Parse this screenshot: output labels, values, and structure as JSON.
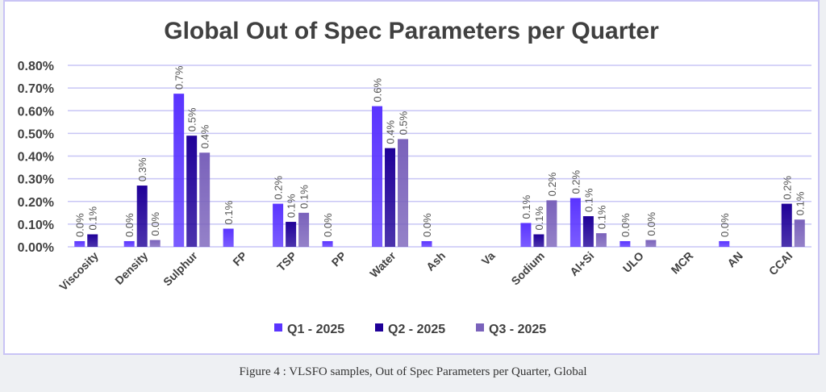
{
  "chart_data": {
    "type": "bar",
    "title": "Global Out of Spec Parameters per Quarter",
    "xlabel": "",
    "ylabel": "",
    "ylim": [
      0,
      0.8
    ],
    "yticks": [
      "0.00%",
      "0.10%",
      "0.20%",
      "0.30%",
      "0.40%",
      "0.50%",
      "0.60%",
      "0.70%",
      "0.80%"
    ],
    "grid": true,
    "legend": "bottom",
    "categories": [
      "Viscosity",
      "Density",
      "Sulphur",
      "FP",
      "TSP",
      "PP",
      "Water",
      "Ash",
      "Va",
      "Sodium",
      "Al+Si",
      "ULO",
      "MCR",
      "AN",
      "CCAI"
    ],
    "series": [
      {
        "name": "Q1 - 2025",
        "color": "#5a34ff",
        "values": [
          0.025,
          0.025,
          0.675,
          0.08,
          0.19,
          0.025,
          0.62,
          0.025,
          null,
          0.105,
          0.215,
          0.025,
          null,
          0.025,
          null
        ],
        "labels": [
          "0.0%",
          "0.0%",
          "0.7%",
          "0.1%",
          "0.2%",
          "0.0%",
          "0.6%",
          "0.0%",
          null,
          "0.1%",
          "0.2%",
          "0.0%",
          null,
          "0.0%",
          null
        ]
      },
      {
        "name": "Q2 - 2025",
        "color": "#1f0098",
        "values": [
          0.055,
          0.27,
          0.49,
          null,
          0.11,
          null,
          0.435,
          null,
          null,
          0.055,
          0.135,
          null,
          null,
          null,
          0.19
        ],
        "labels": [
          "0.1%",
          "0.3%",
          "0.5%",
          null,
          "0.1%",
          null,
          "0.4%",
          null,
          null,
          "0.1%",
          "0.1%",
          null,
          null,
          null,
          "0.2%"
        ]
      },
      {
        "name": "Q3 - 2025",
        "color": "#7a62bb",
        "values": [
          null,
          0.03,
          0.415,
          null,
          0.15,
          null,
          0.475,
          null,
          null,
          0.205,
          0.06,
          0.03,
          null,
          null,
          0.12
        ],
        "labels": [
          null,
          "0.0%",
          "0.4%",
          null,
          "0.1%",
          null,
          "0.5%",
          null,
          null,
          "0.2%",
          "0.1%",
          "0.0%",
          null,
          null,
          "0.1%"
        ]
      }
    ]
  },
  "caption": "Figure 4 : VLSFO samples, Out of Spec Parameters per Quarter, Global"
}
